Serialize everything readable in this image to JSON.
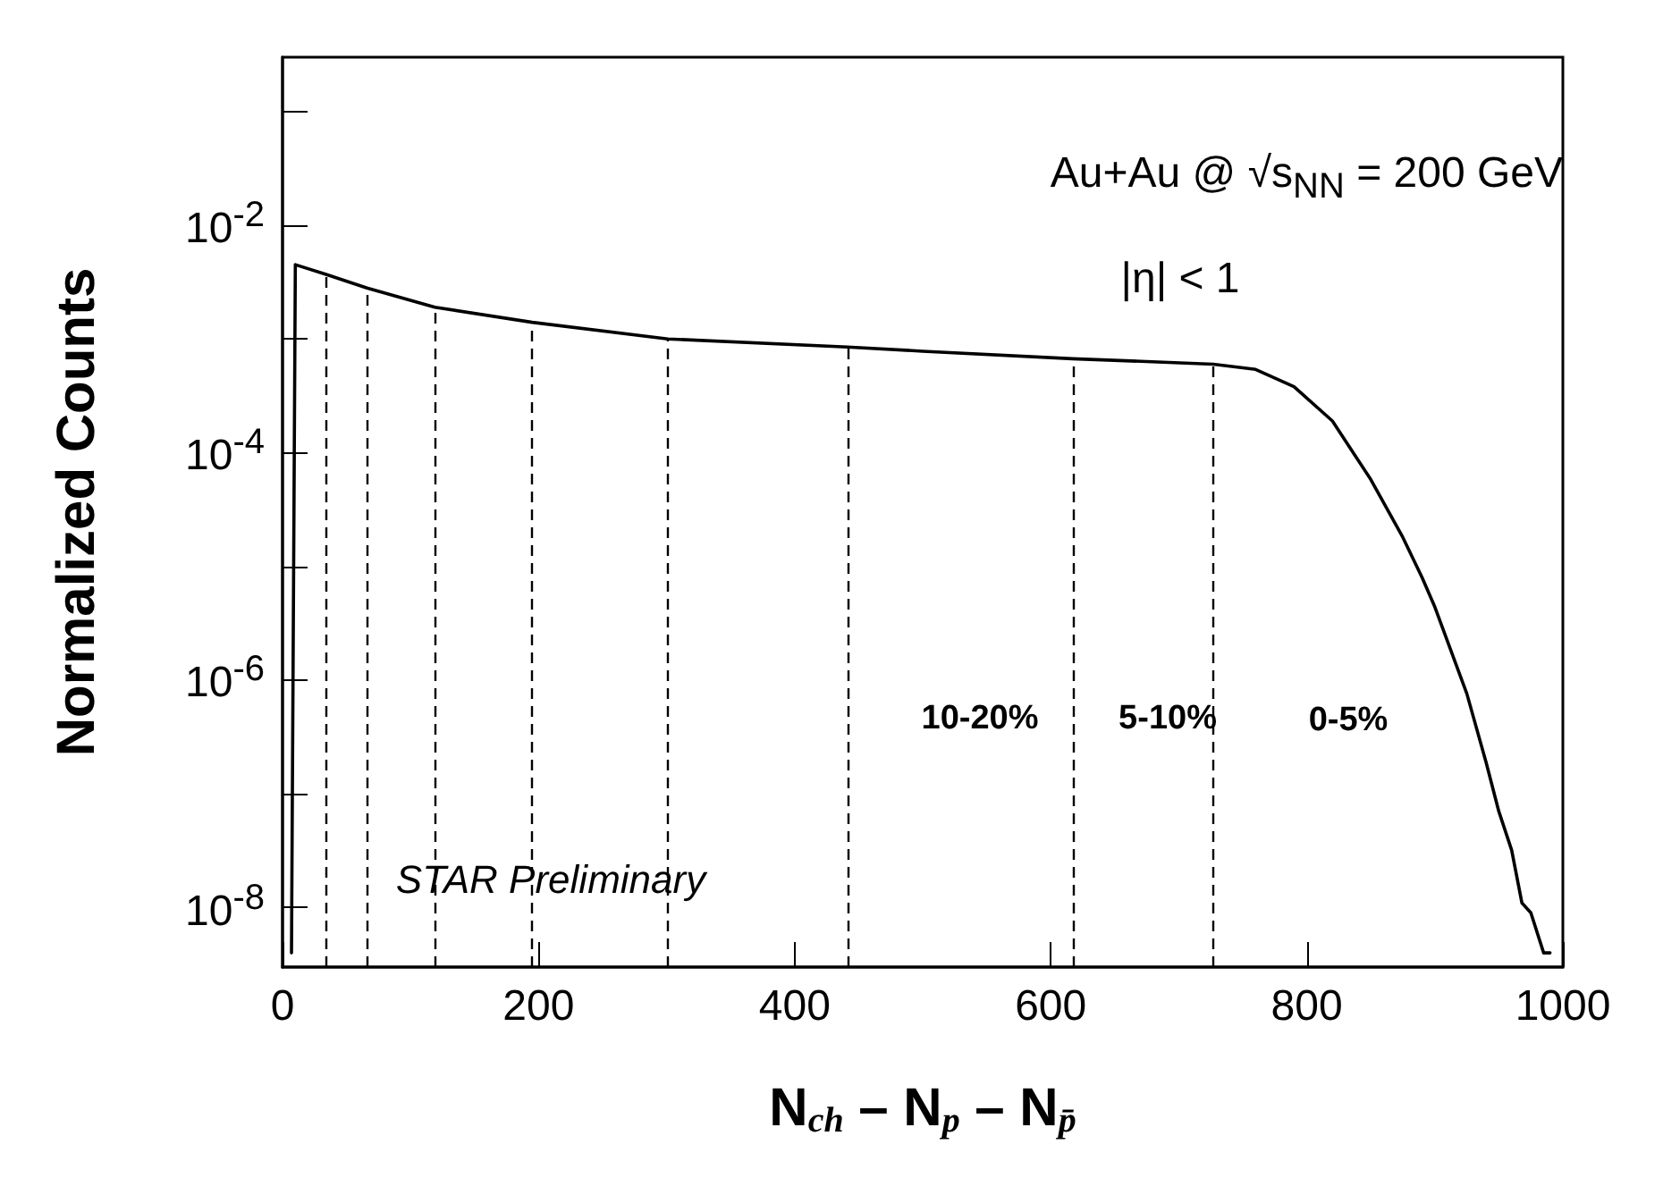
{
  "chart_data": {
    "type": "line",
    "xlabel": "N$_{ch}$ – N$_{p}$ – N$_{p̄}$",
    "ylabel": "Normalized Counts",
    "x": [
      7,
      10,
      34,
      66,
      119,
      195,
      301,
      441,
      500,
      617,
      727,
      760,
      790,
      820,
      850,
      875,
      890,
      900,
      925,
      940,
      950,
      960,
      968,
      975,
      985,
      990
    ],
    "series": [
      {
        "color": "#000000",
        "values": [
          4e-09,
          0.0045,
          0.0037,
          0.0028,
          0.0019,
          0.0014,
          0.001,
          0.00085,
          0.00078,
          0.00067,
          0.0006,
          0.00054,
          0.00038,
          0.00019,
          5.8e-05,
          1.8e-05,
          8e-06,
          4.4e-06,
          7.6e-07,
          1.9e-07,
          7e-08,
          3.2e-08,
          1.1e-08,
          9e-09,
          4e-09,
          4e-09
        ]
      }
    ],
    "xlim": [
      0,
      1000
    ],
    "xticks": [
      0,
      200,
      400,
      600,
      800,
      1000
    ],
    "ylim": [
      3e-09,
      0.3
    ],
    "yticks": [
      {
        "value": 0.1,
        "label": null
      },
      {
        "value": 0.01,
        "label": "10$^{-2}$"
      },
      {
        "value": 0.001,
        "label": null
      },
      {
        "value": 0.0001,
        "label": "10$^{-4}$"
      },
      {
        "value": 1e-05,
        "label": null
      },
      {
        "value": 1e-06,
        "label": "10$^{-6}$"
      },
      {
        "value": 1e-07,
        "label": null
      },
      {
        "value": 1e-08,
        "label": "10$^{-8}$"
      }
    ],
    "log": "y",
    "grid": false,
    "marker": "none",
    "line_style": "solid",
    "ref_lines": [
      {
        "axis": "x",
        "value": 34,
        "color": "#000000",
        "line_style": "dashed"
      },
      {
        "axis": "x",
        "value": 66,
        "color": "#000000",
        "line_style": "dashed"
      },
      {
        "axis": "x",
        "value": 119,
        "color": "#000000",
        "line_style": "dashed"
      },
      {
        "axis": "x",
        "value": 195,
        "color": "#000000",
        "line_style": "dashed"
      },
      {
        "axis": "x",
        "value": 301,
        "color": "#000000",
        "line_style": "dashed"
      },
      {
        "axis": "x",
        "value": 441,
        "color": "#000000",
        "line_style": "dashed"
      },
      {
        "axis": "x",
        "value": 617,
        "color": "#000000",
        "line_style": "dashed"
      },
      {
        "axis": "x",
        "value": 727,
        "color": "#000000",
        "line_style": "dashed"
      }
    ],
    "annotations": [
      "Au+Au @ √s$_{NN}$ = 200 GeV",
      "|η| < 1",
      "10-20%",
      "5-10%",
      "0-5%",
      "STAR Preliminary"
    ]
  }
}
